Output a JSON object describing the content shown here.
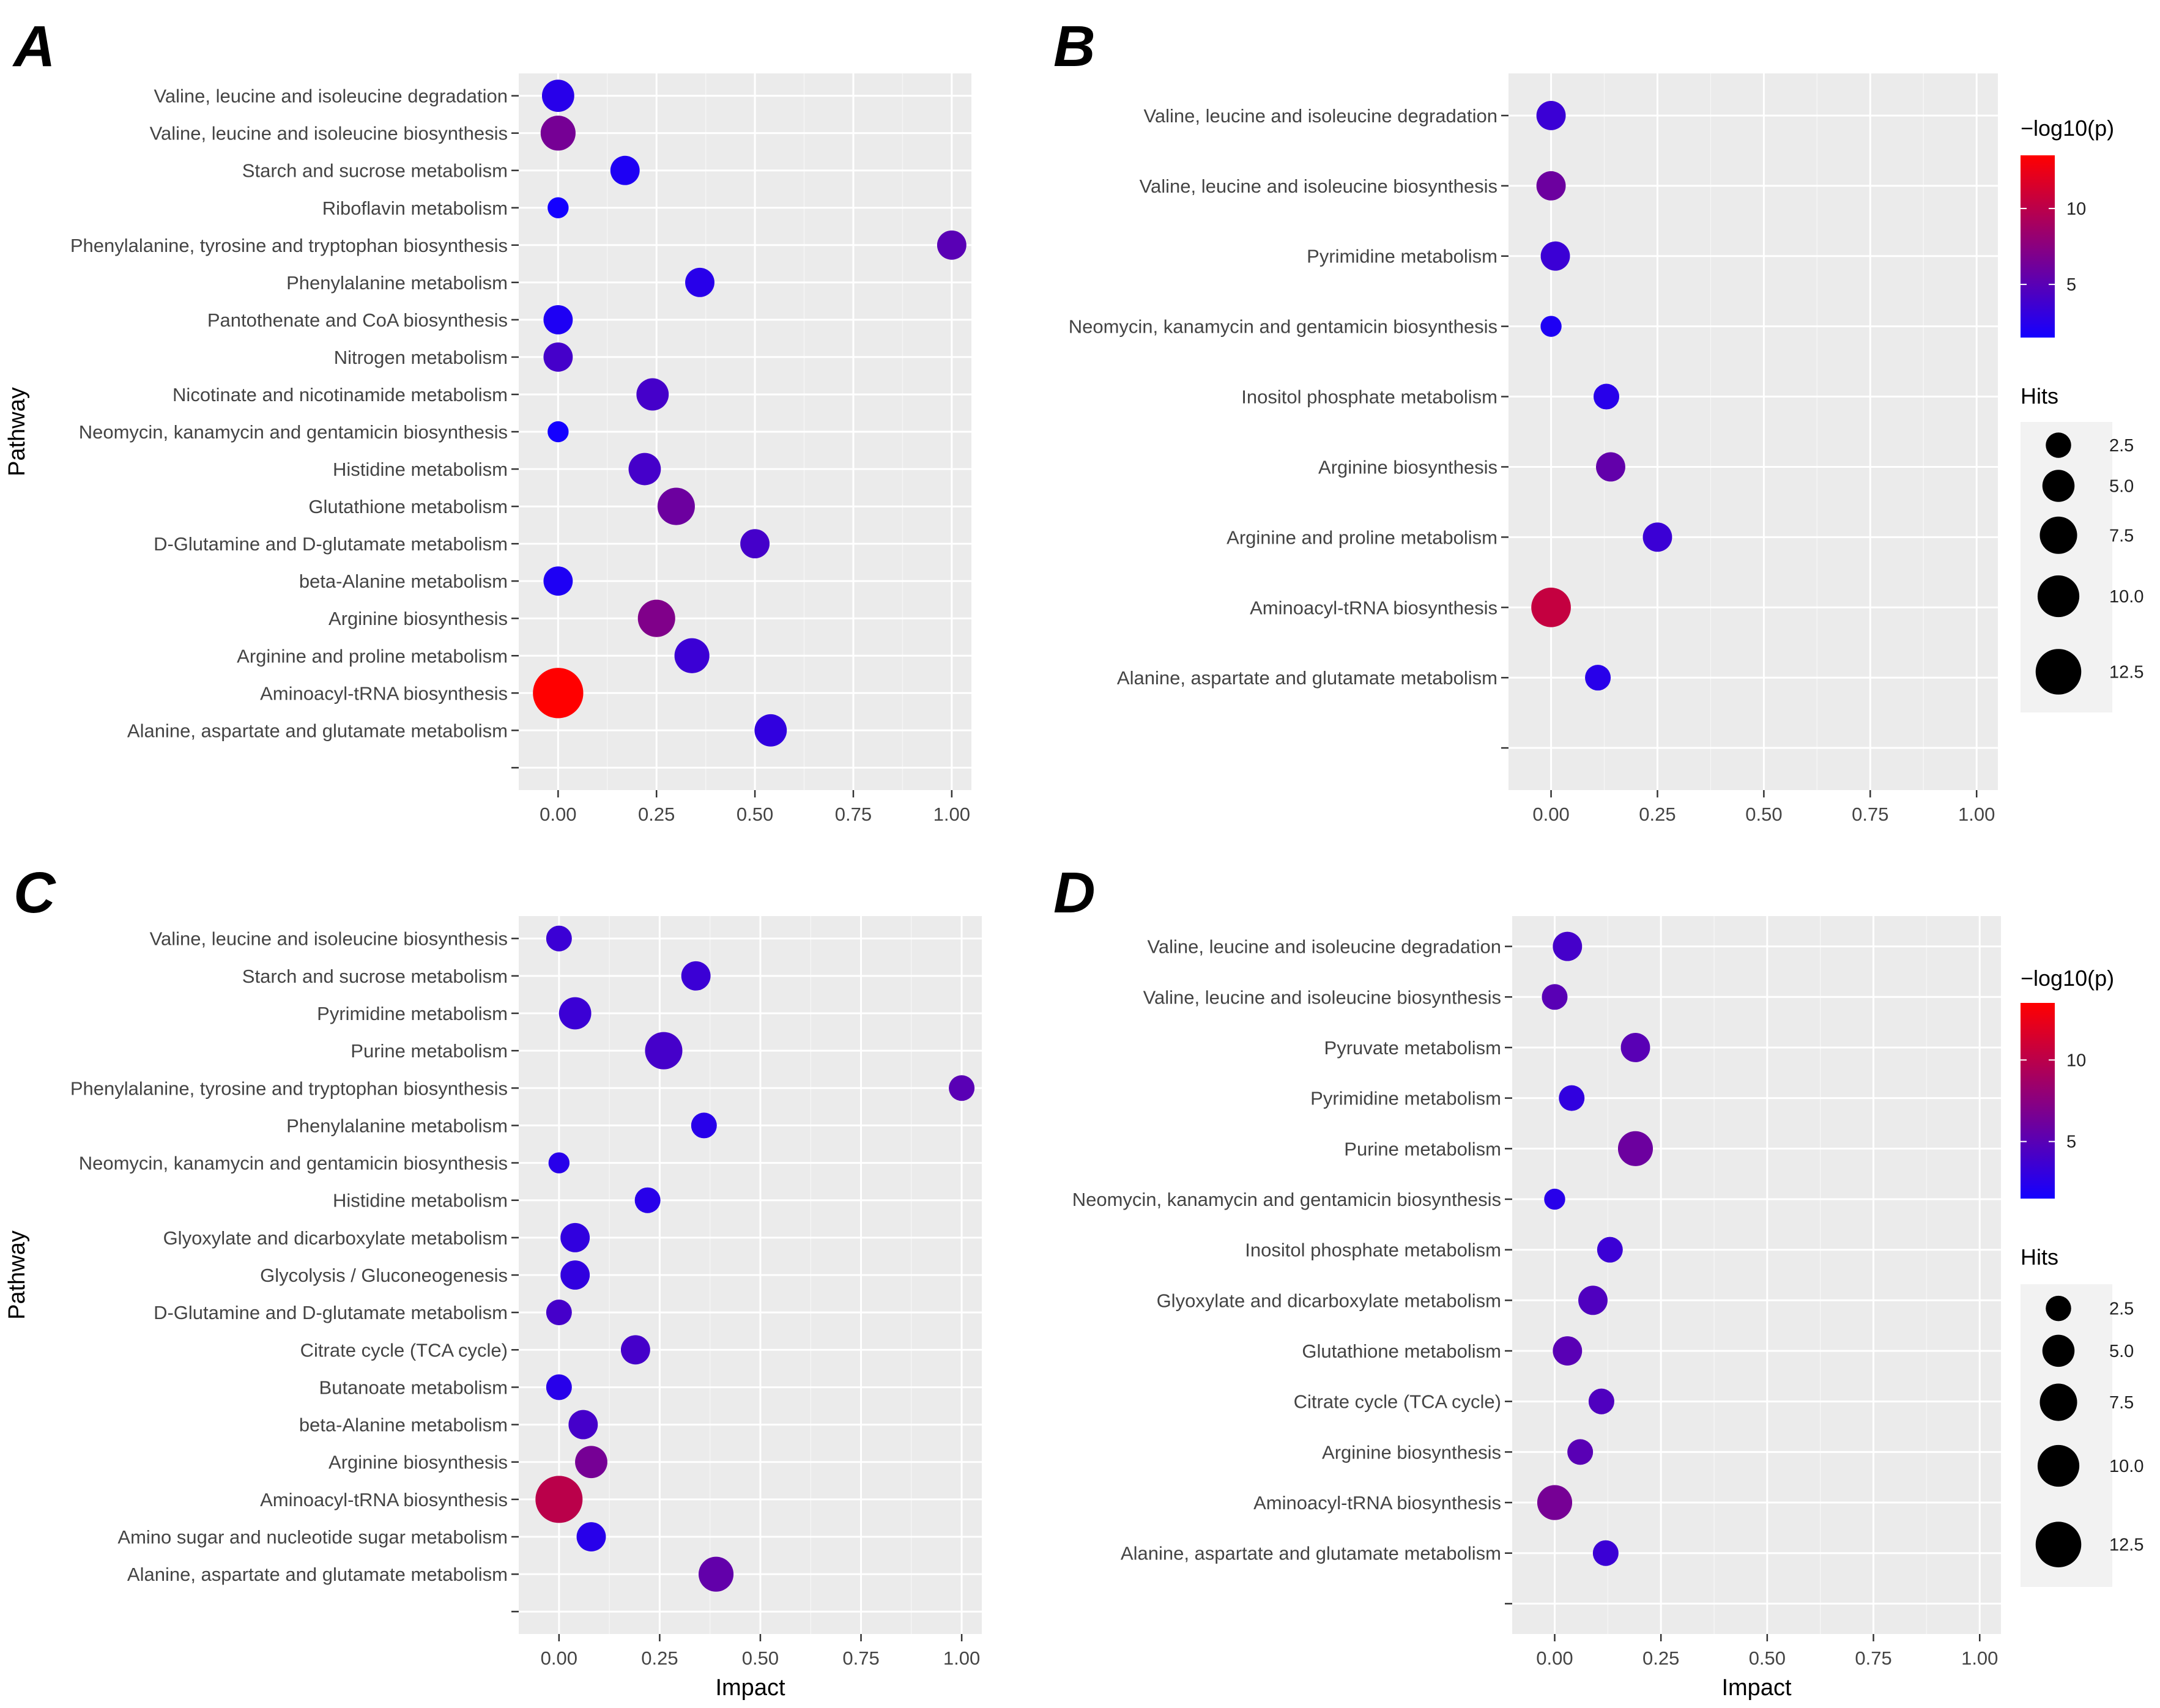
{
  "figure": {
    "panel_labels": [
      "A",
      "B",
      "C",
      "D"
    ]
  },
  "chart_data": [
    {
      "panel": "A",
      "type": "scatter",
      "ylabel": "Pathway",
      "xlabel": "",
      "xlim": [
        -0.1,
        1.05
      ],
      "x_ticks": [
        "0.00",
        "0.25",
        "0.50",
        "0.75",
        "1.00"
      ],
      "x_tick_values": [
        0,
        0.25,
        0.5,
        0.75,
        1.0
      ],
      "grid": true,
      "legend": null,
      "points": [
        {
          "pathway": "Valine, leucine and isoleucine degradation",
          "impact": 0.0,
          "hits": 4,
          "neglog10p": 2.5
        },
        {
          "pathway": "Valine, leucine and isoleucine biosynthesis",
          "impact": 0.0,
          "hits": 5,
          "neglog10p": 6.5
        },
        {
          "pathway": "Starch and sucrose metabolism",
          "impact": 0.17,
          "hits": 3,
          "neglog10p": 2.0
        },
        {
          "pathway": "Riboflavin metabolism",
          "impact": 0.0,
          "hits": 1,
          "neglog10p": 1.5
        },
        {
          "pathway": "Phenylalanine, tyrosine and tryptophan biosynthesis",
          "impact": 1.0,
          "hits": 3,
          "neglog10p": 5.0
        },
        {
          "pathway": "Phenylalanine metabolism",
          "impact": 0.36,
          "hits": 3,
          "neglog10p": 2.5
        },
        {
          "pathway": "Pantothenate and CoA biosynthesis",
          "impact": 0.0,
          "hits": 3,
          "neglog10p": 2.0
        },
        {
          "pathway": "Nitrogen metabolism",
          "impact": 0.0,
          "hits": 3,
          "neglog10p": 4.0
        },
        {
          "pathway": "Nicotinate and nicotinamide metabolism",
          "impact": 0.24,
          "hits": 4,
          "neglog10p": 4.0
        },
        {
          "pathway": "Neomycin, kanamycin and gentamicin biosynthesis",
          "impact": 0.0,
          "hits": 1,
          "neglog10p": 1.5
        },
        {
          "pathway": "Histidine metabolism",
          "impact": 0.22,
          "hits": 4,
          "neglog10p": 4.0
        },
        {
          "pathway": "Glutathione metabolism",
          "impact": 0.3,
          "hits": 6,
          "neglog10p": 6.0
        },
        {
          "pathway": "D-Glutamine and D-glutamate metabolism",
          "impact": 0.5,
          "hits": 3,
          "neglog10p": 4.0
        },
        {
          "pathway": "beta-Alanine metabolism",
          "impact": 0.0,
          "hits": 3,
          "neglog10p": 2.0
        },
        {
          "pathway": "Arginine biosynthesis",
          "impact": 0.25,
          "hits": 6,
          "neglog10p": 7.0
        },
        {
          "pathway": "Arginine and proline metabolism",
          "impact": 0.34,
          "hits": 5,
          "neglog10p": 3.5
        },
        {
          "pathway": "Aminoacyl-tRNA biosynthesis",
          "impact": 0.0,
          "hits": 13,
          "neglog10p": 13.5
        },
        {
          "pathway": "Alanine, aspartate and glutamate metabolism",
          "impact": 0.54,
          "hits": 4,
          "neglog10p": 3.0
        }
      ]
    },
    {
      "panel": "B",
      "type": "scatter",
      "ylabel": "",
      "xlabel": "",
      "xlim": [
        -0.1,
        1.05
      ],
      "x_ticks": [
        "0.00",
        "0.25",
        "0.50",
        "0.75",
        "1.00"
      ],
      "x_tick_values": [
        0,
        0.25,
        0.5,
        0.75,
        1.0
      ],
      "grid": true,
      "legend": {
        "color_title": "−log10(p)",
        "color_ticks": [
          "10",
          "5"
        ],
        "color_tick_values": [
          10,
          5
        ],
        "color_range": [
          1.5,
          13.5
        ],
        "size_title": "Hits",
        "size_ticks": [
          "2.5",
          "5.0",
          "7.5",
          "10.0",
          "12.5"
        ],
        "size_tick_values": [
          2.5,
          5.0,
          7.5,
          10.0,
          12.5
        ]
      },
      "points": [
        {
          "pathway": "Valine, leucine and isoleucine degradation",
          "impact": 0.0,
          "hits": 3,
          "neglog10p": 3.5
        },
        {
          "pathway": "Valine, leucine and isoleucine biosynthesis",
          "impact": 0.0,
          "hits": 3,
          "neglog10p": 6.0
        },
        {
          "pathway": "Pyrimidine metabolism",
          "impact": 0.01,
          "hits": 3,
          "neglog10p": 3.5
        },
        {
          "pathway": "Neomycin, kanamycin and gentamicin biosynthesis",
          "impact": 0.0,
          "hits": 1,
          "neglog10p": 2.0
        },
        {
          "pathway": "Inositol phosphate metabolism",
          "impact": 0.13,
          "hits": 2,
          "neglog10p": 2.5
        },
        {
          "pathway": "Arginine biosynthesis",
          "impact": 0.14,
          "hits": 3,
          "neglog10p": 5.5
        },
        {
          "pathway": "Arginine and proline metabolism",
          "impact": 0.25,
          "hits": 3,
          "neglog10p": 3.5
        },
        {
          "pathway": "Aminoacyl-tRNA biosynthesis",
          "impact": 0.0,
          "hits": 7,
          "neglog10p": 10.5
        },
        {
          "pathway": "Alanine, aspartate and glutamate metabolism",
          "impact": 0.11,
          "hits": 2,
          "neglog10p": 2.5
        },
        {
          "pathway": "",
          "impact": null,
          "hits": null,
          "neglog10p": null
        }
      ]
    },
    {
      "panel": "C",
      "type": "scatter",
      "ylabel": "Pathway",
      "xlabel": "Impact",
      "xlim": [
        -0.1,
        1.05
      ],
      "x_ticks": [
        "0.00",
        "0.25",
        "0.50",
        "0.75",
        "1.00"
      ],
      "x_tick_values": [
        0,
        0.25,
        0.5,
        0.75,
        1.0
      ],
      "grid": true,
      "legend": null,
      "points": [
        {
          "pathway": "Valine, leucine and isoleucine biosynthesis",
          "impact": 0.0,
          "hits": 2,
          "neglog10p": 3.5
        },
        {
          "pathway": "Starch and sucrose metabolism",
          "impact": 0.34,
          "hits": 3,
          "neglog10p": 3.5
        },
        {
          "pathway": "Pyrimidine metabolism",
          "impact": 0.04,
          "hits": 4,
          "neglog10p": 3.5
        },
        {
          "pathway": "Purine metabolism",
          "impact": 0.26,
          "hits": 6,
          "neglog10p": 4.0
        },
        {
          "pathway": "Phenylalanine, tyrosine and tryptophan biosynthesis",
          "impact": 1.0,
          "hits": 2,
          "neglog10p": 5.0
        },
        {
          "pathway": "Phenylalanine metabolism",
          "impact": 0.36,
          "hits": 2,
          "neglog10p": 2.5
        },
        {
          "pathway": "Neomycin, kanamycin and gentamicin biosynthesis",
          "impact": 0.0,
          "hits": 1,
          "neglog10p": 2.5
        },
        {
          "pathway": "Histidine metabolism",
          "impact": 0.22,
          "hits": 2,
          "neglog10p": 2.5
        },
        {
          "pathway": "Glyoxylate and dicarboxylate metabolism",
          "impact": 0.04,
          "hits": 3,
          "neglog10p": 3.0
        },
        {
          "pathway": "Glycolysis / Gluconeogenesis",
          "impact": 0.04,
          "hits": 3,
          "neglog10p": 3.0
        },
        {
          "pathway": "D-Glutamine and D-glutamate metabolism",
          "impact": 0.0,
          "hits": 2,
          "neglog10p": 4.0
        },
        {
          "pathway": "Citrate cycle (TCA cycle)",
          "impact": 0.19,
          "hits": 3,
          "neglog10p": 4.0
        },
        {
          "pathway": "Butanoate metabolism",
          "impact": 0.0,
          "hits": 2,
          "neglog10p": 2.5
        },
        {
          "pathway": "beta-Alanine metabolism",
          "impact": 0.06,
          "hits": 3,
          "neglog10p": 4.0
        },
        {
          "pathway": "Arginine biosynthesis",
          "impact": 0.08,
          "hits": 4,
          "neglog10p": 6.5
        },
        {
          "pathway": "Aminoacyl-tRNA biosynthesis",
          "impact": 0.0,
          "hits": 11,
          "neglog10p": 10.0
        },
        {
          "pathway": "Amino sugar and nucleotide sugar metabolism",
          "impact": 0.08,
          "hits": 3,
          "neglog10p": 2.5
        },
        {
          "pathway": "Alanine, aspartate and glutamate metabolism",
          "impact": 0.39,
          "hits": 5,
          "neglog10p": 5.5
        }
      ]
    },
    {
      "panel": "D",
      "type": "scatter",
      "ylabel": "",
      "xlabel": "Impact",
      "xlim": [
        -0.1,
        1.05
      ],
      "x_ticks": [
        "0.00",
        "0.25",
        "0.50",
        "0.75",
        "1.00"
      ],
      "x_tick_values": [
        0,
        0.25,
        0.5,
        0.75,
        1.0
      ],
      "grid": true,
      "legend": {
        "color_title": "−log10(p)",
        "color_ticks": [
          "10",
          "5"
        ],
        "color_tick_values": [
          10,
          5
        ],
        "color_range": [
          1.5,
          13.5
        ],
        "size_title": "Hits",
        "size_ticks": [
          "2.5",
          "5.0",
          "7.5",
          "10.0",
          "12.5"
        ],
        "size_tick_values": [
          2.5,
          5.0,
          7.5,
          10.0,
          12.5
        ]
      },
      "points": [
        {
          "pathway": "Valine, leucine and isoleucine degradation",
          "impact": 0.03,
          "hits": 3,
          "neglog10p": 4.0
        },
        {
          "pathway": "Valine, leucine and isoleucine biosynthesis",
          "impact": 0.0,
          "hits": 2,
          "neglog10p": 5.0
        },
        {
          "pathway": "Pyruvate metabolism",
          "impact": 0.19,
          "hits": 3,
          "neglog10p": 5.0
        },
        {
          "pathway": "Pyrimidine metabolism",
          "impact": 0.04,
          "hits": 2,
          "neglog10p": 3.0
        },
        {
          "pathway": "Purine metabolism",
          "impact": 0.19,
          "hits": 5,
          "neglog10p": 6.0
        },
        {
          "pathway": "Neomycin, kanamycin and gentamicin biosynthesis",
          "impact": 0.0,
          "hits": 1,
          "neglog10p": 2.5
        },
        {
          "pathway": "Inositol phosphate metabolism",
          "impact": 0.13,
          "hits": 2,
          "neglog10p": 3.5
        },
        {
          "pathway": "Glyoxylate and dicarboxylate metabolism",
          "impact": 0.09,
          "hits": 3,
          "neglog10p": 4.5
        },
        {
          "pathway": "Glutathione metabolism",
          "impact": 0.03,
          "hits": 3,
          "neglog10p": 5.0
        },
        {
          "pathway": "Citrate cycle (TCA cycle)",
          "impact": 0.11,
          "hits": 2,
          "neglog10p": 4.5
        },
        {
          "pathway": "Arginine biosynthesis",
          "impact": 0.06,
          "hits": 2,
          "neglog10p": 5.0
        },
        {
          "pathway": "Aminoacyl-tRNA biosynthesis",
          "impact": 0.0,
          "hits": 5,
          "neglog10p": 6.5
        },
        {
          "pathway": "Alanine, aspartate and glutamate metabolism",
          "impact": 0.12,
          "hits": 2,
          "neglog10p": 3.5
        },
        {
          "pathway": "",
          "impact": null,
          "hits": null,
          "neglog10p": null
        }
      ]
    }
  ]
}
